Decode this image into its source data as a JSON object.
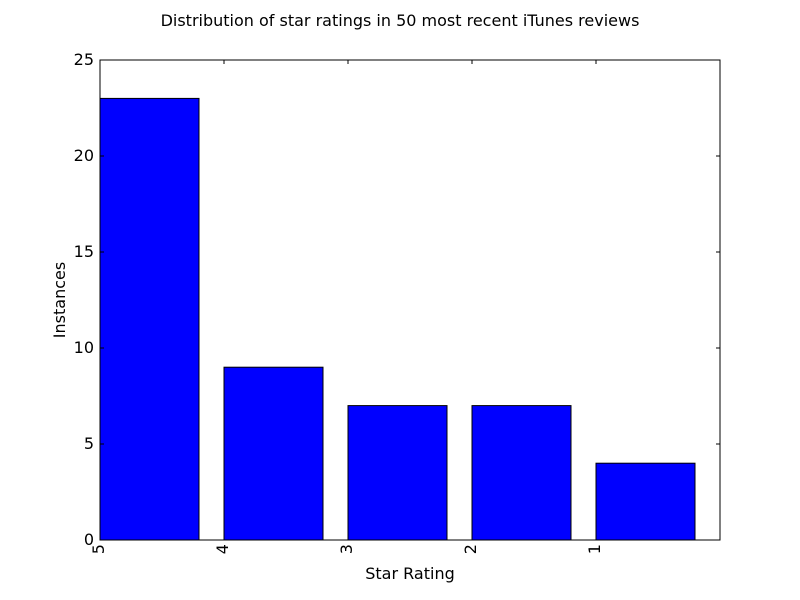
{
  "chart_data": {
    "type": "bar",
    "title": "Distribution of star ratings in 50 most recent iTunes reviews",
    "xlabel": "Star Rating",
    "ylabel": "Instances",
    "categories": [
      "5",
      "4",
      "3",
      "2",
      "1"
    ],
    "values": [
      23,
      9,
      7,
      7,
      4
    ],
    "ylim": [
      0,
      25
    ],
    "yticks": [
      "0",
      "5",
      "10",
      "15",
      "20",
      "25"
    ],
    "bar_color": "#0000ff",
    "edge_color": "#000000",
    "grid": false
  }
}
